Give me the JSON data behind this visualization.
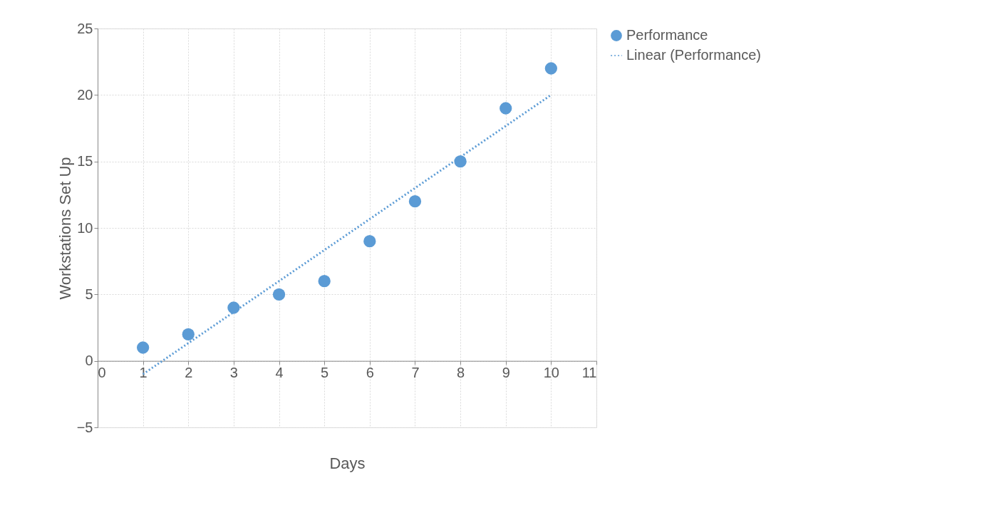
{
  "chart_data": {
    "type": "scatter",
    "xlabel": "Days",
    "ylabel": "Workstations Set Up",
    "x": [
      1,
      2,
      3,
      4,
      5,
      6,
      7,
      8,
      9,
      10
    ],
    "series": [
      {
        "name": "Performance",
        "color": "#5b9bd5",
        "values": [
          1,
          2,
          4,
          5,
          6,
          9,
          12,
          15,
          19,
          22
        ],
        "marker": "circle"
      },
      {
        "name": "Linear (Performance)",
        "type": "line",
        "color": "#5b9bd5",
        "x": [
          1,
          10
        ],
        "values": [
          -1,
          20
        ],
        "line_style": "dotted"
      }
    ],
    "xlim": [
      0,
      11
    ],
    "xticks": [
      0,
      1,
      2,
      3,
      4,
      5,
      6,
      7,
      8,
      9,
      10,
      11
    ],
    "ylim": [
      -5,
      25
    ],
    "yticks": [
      -5,
      0,
      5,
      10,
      15,
      20,
      25
    ],
    "grid": true,
    "legend": "right"
  }
}
